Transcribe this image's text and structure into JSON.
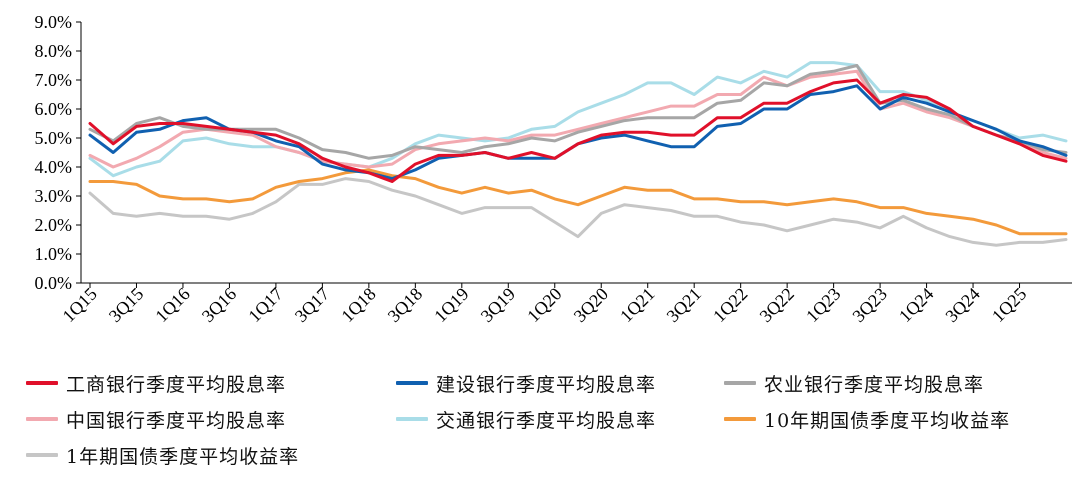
{
  "chart_data": {
    "type": "line",
    "ylim": [
      0,
      9
    ],
    "ytick_labels": [
      "0.0%",
      "1.0%",
      "2.0%",
      "3.0%",
      "4.0%",
      "5.0%",
      "6.0%",
      "7.0%",
      "8.0%",
      "9.0%"
    ],
    "categories": [
      "1Q15",
      "2Q15",
      "3Q15",
      "4Q15",
      "1Q16",
      "2Q16",
      "3Q16",
      "4Q16",
      "1Q17",
      "2Q17",
      "3Q17",
      "4Q17",
      "1Q18",
      "2Q18",
      "3Q18",
      "4Q18",
      "1Q19",
      "2Q19",
      "3Q19",
      "4Q19",
      "1Q20",
      "2Q20",
      "3Q20",
      "4Q20",
      "1Q21",
      "2Q21",
      "3Q21",
      "4Q21",
      "1Q22",
      "2Q22",
      "3Q22",
      "4Q22",
      "1Q23",
      "2Q23",
      "3Q23",
      "4Q23",
      "1Q24",
      "2Q24",
      "3Q24",
      "4Q24",
      "1Q25",
      "2Q25",
      "3Q25"
    ],
    "xtick_labels": [
      "1Q15",
      "3Q15",
      "1Q16",
      "3Q16",
      "1Q17",
      "3Q17",
      "1Q18",
      "3Q18",
      "1Q19",
      "3Q19",
      "1Q20",
      "3Q20",
      "1Q21",
      "3Q21",
      "1Q22",
      "3Q22",
      "1Q23",
      "3Q23",
      "1Q24",
      "3Q24",
      "1Q25"
    ],
    "series": [
      {
        "name": "工商银行季度平均股息率",
        "color": "#e0102a",
        "values": [
          5.5,
          4.8,
          5.4,
          5.5,
          5.5,
          5.4,
          5.3,
          5.2,
          5.1,
          4.8,
          4.3,
          4.0,
          3.8,
          3.5,
          4.1,
          4.4,
          4.4,
          4.5,
          4.3,
          4.5,
          4.3,
          4.8,
          5.1,
          5.2,
          5.2,
          5.1,
          5.1,
          5.7,
          5.7,
          6.2,
          6.2,
          6.6,
          6.9,
          7.0,
          6.2,
          6.5,
          6.4,
          6.0,
          5.4,
          5.1,
          4.8,
          4.4,
          4.2
        ]
      },
      {
        "name": "建设银行季度平均股息率",
        "color": "#1060b0",
        "values": [
          5.1,
          4.5,
          5.2,
          5.3,
          5.6,
          5.7,
          5.3,
          5.2,
          4.9,
          4.7,
          4.1,
          3.9,
          3.8,
          3.6,
          3.9,
          4.3,
          4.4,
          4.5,
          4.3,
          4.3,
          4.3,
          4.8,
          5.0,
          5.1,
          4.9,
          4.7,
          4.7,
          5.4,
          5.5,
          6.0,
          6.0,
          6.5,
          6.6,
          6.8,
          6.0,
          6.4,
          6.2,
          5.9,
          5.6,
          5.3,
          4.9,
          4.7,
          4.4
        ]
      },
      {
        "name": "农业银行季度平均股息率",
        "color": "#a6a6a6",
        "values": [
          5.3,
          4.9,
          5.5,
          5.7,
          5.4,
          5.3,
          5.3,
          5.3,
          5.3,
          5.0,
          4.6,
          4.5,
          4.3,
          4.4,
          4.7,
          4.6,
          4.5,
          4.7,
          4.8,
          5.0,
          4.9,
          5.2,
          5.4,
          5.6,
          5.7,
          5.7,
          5.7,
          6.2,
          6.3,
          6.9,
          6.8,
          7.2,
          7.3,
          7.5,
          6.2,
          6.3,
          6.0,
          5.8,
          5.4,
          5.1,
          4.9,
          4.6,
          4.5
        ]
      },
      {
        "name": "中国银行季度平均股息率",
        "color": "#f2a9b0",
        "values": [
          4.4,
          4.0,
          4.3,
          4.7,
          5.2,
          5.3,
          5.2,
          5.1,
          4.7,
          4.5,
          4.2,
          4.1,
          4.0,
          4.1,
          4.6,
          4.8,
          4.9,
          5.0,
          4.9,
          5.1,
          5.1,
          5.3,
          5.5,
          5.7,
          5.9,
          6.1,
          6.1,
          6.5,
          6.5,
          7.1,
          6.8,
          7.1,
          7.2,
          7.3,
          6.0,
          6.2,
          5.9,
          5.7,
          5.4,
          5.1,
          4.8,
          4.5,
          4.3
        ]
      },
      {
        "name": "交通银行季度平均股息率",
        "color": "#a9dde8",
        "values": [
          4.3,
          3.7,
          4.0,
          4.2,
          4.9,
          5.0,
          4.8,
          4.7,
          4.7,
          4.5,
          4.2,
          4.1,
          4.0,
          4.3,
          4.8,
          5.1,
          5.0,
          4.9,
          5.0,
          5.3,
          5.4,
          5.9,
          6.2,
          6.5,
          6.9,
          6.9,
          6.5,
          7.1,
          6.9,
          7.3,
          7.1,
          7.6,
          7.6,
          7.5,
          6.6,
          6.6,
          6.3,
          5.9,
          5.6,
          5.3,
          5.0,
          5.1,
          4.9
        ]
      },
      {
        "name": "10年期国债季度平均收益率",
        "color": "#f39a3b",
        "values": [
          3.5,
          3.5,
          3.4,
          3.0,
          2.9,
          2.9,
          2.8,
          2.9,
          3.3,
          3.5,
          3.6,
          3.8,
          3.9,
          3.7,
          3.6,
          3.3,
          3.1,
          3.3,
          3.1,
          3.2,
          2.9,
          2.7,
          3.0,
          3.3,
          3.2,
          3.2,
          2.9,
          2.9,
          2.8,
          2.8,
          2.7,
          2.8,
          2.9,
          2.8,
          2.6,
          2.6,
          2.4,
          2.3,
          2.2,
          2.0,
          1.7,
          1.7,
          1.7
        ]
      },
      {
        "name": "1年期国债季度平均收益率",
        "color": "#c6c6c6",
        "values": [
          3.1,
          2.4,
          2.3,
          2.4,
          2.3,
          2.3,
          2.2,
          2.4,
          2.8,
          3.4,
          3.4,
          3.6,
          3.5,
          3.2,
          3.0,
          2.7,
          2.4,
          2.6,
          2.6,
          2.6,
          2.1,
          1.6,
          2.4,
          2.7,
          2.6,
          2.5,
          2.3,
          2.3,
          2.1,
          2.0,
          1.8,
          2.0,
          2.2,
          2.1,
          1.9,
          2.3,
          1.9,
          1.6,
          1.4,
          1.3,
          1.4,
          1.4,
          1.5
        ]
      }
    ]
  }
}
